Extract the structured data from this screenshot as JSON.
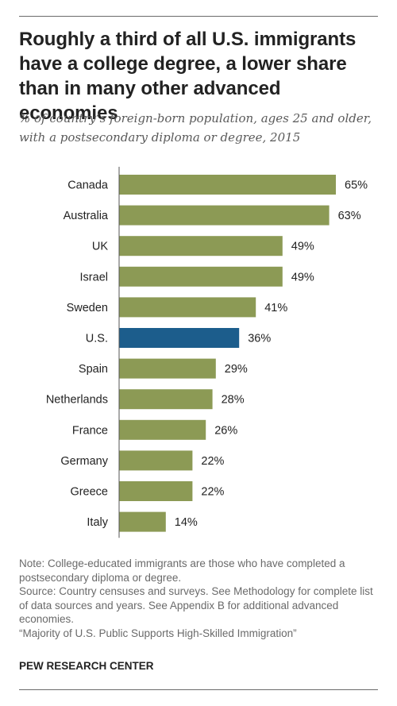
{
  "title": "Roughly a third of all U.S. immigrants have a college degree, a lower share than in many other advanced economies",
  "subtitle": "% of country’s foreign-born population, ages 25 and older, with a postsecondary diploma or degree, 2015",
  "chart_data": {
    "type": "bar",
    "orientation": "horizontal",
    "categories": [
      "Canada",
      "Australia",
      "UK",
      "Israel",
      "Sweden",
      "U.S.",
      "Spain",
      "Netherlands",
      "France",
      "Germany",
      "Greece",
      "Italy"
    ],
    "values": [
      65,
      63,
      49,
      49,
      41,
      36,
      29,
      28,
      26,
      22,
      22,
      14
    ],
    "value_labels": [
      "65%",
      "63%",
      "49%",
      "49%",
      "41%",
      "36%",
      "29%",
      "28%",
      "26%",
      "22%",
      "22%",
      "14%"
    ],
    "highlight": "U.S.",
    "xlim": [
      0,
      100
    ],
    "colors": {
      "default": "#8c9a55",
      "highlight": "#1c5d8c",
      "axis": "#555555"
    }
  },
  "notes": {
    "note": "Note: College-educated immigrants are those who have completed a postsecondary diploma or degree.",
    "source": "Source: Country censuses and surveys. See Methodology for complete list of data sources and years. See Appendix B for additional advanced economies.",
    "report": "“Majority of U.S. Public Supports High-Skilled Immigration”"
  },
  "brand": "PEW RESEARCH CENTER"
}
